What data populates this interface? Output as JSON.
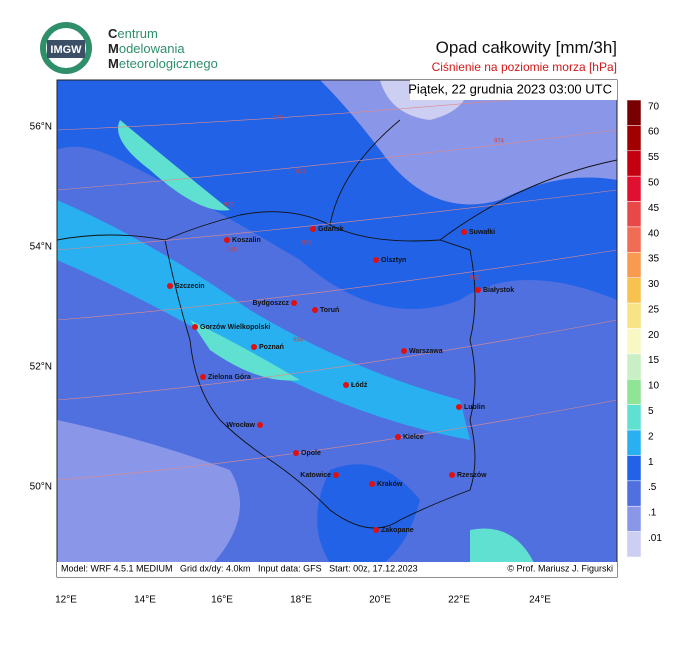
{
  "header": {
    "logo": "IMGW",
    "org_lines": [
      "Centrum",
      "Modelowania",
      "Meteorologicznego"
    ],
    "title": "Opad całkowity [mm/3h]",
    "subtitle": "Ciśnienie na poziomie morza [hPa]"
  },
  "map": {
    "date": "Piątek, 22 grudnia 2023 03:00 UTC",
    "lat_labels": [
      "56°N",
      "54°N",
      "52°N",
      "50°N"
    ],
    "lon_labels": [
      "12°E",
      "14°E",
      "16°E",
      "18°E",
      "20°E",
      "22°E",
      "24°E"
    ],
    "cities": [
      "Gdańsk",
      "Suwałki",
      "Koszalin",
      "Olsztyn",
      "Szczecin",
      "Białystok",
      "Bydgoszcz",
      "Toruń",
      "Gorzów Wielkopolski",
      "Poznań",
      "Warszawa",
      "Zielona Góra",
      "Łódź",
      "Lublin",
      "Wrocław",
      "Kielce",
      "Opole",
      "Katowice",
      "Rzeszów",
      "Kraków",
      "Zakopane"
    ],
    "isobar_labels": [
      "972",
      "974",
      "974",
      "976",
      "978",
      "980",
      "982",
      "984"
    ],
    "footer_left": "Model: WRF 4.5.1 MEDIUM   Grid dx/dy: 4.0km   Input data: GFS   Start: 00z, 17.12.2023",
    "footer_right": "© Prof. Mariusz J. Figurski"
  },
  "legend": [
    {
      "label": "70",
      "color": "#780000"
    },
    {
      "label": "60",
      "color": "#a00000"
    },
    {
      "label": "55",
      "color": "#c40010"
    },
    {
      "label": "50",
      "color": "#e01030"
    },
    {
      "label": "45",
      "color": "#e84848"
    },
    {
      "label": "40",
      "color": "#f06c54"
    },
    {
      "label": "35",
      "color": "#f89a50"
    },
    {
      "label": "30",
      "color": "#f8c24e"
    },
    {
      "label": "25",
      "color": "#f6e486"
    },
    {
      "label": "20",
      "color": "#f8f8c4"
    },
    {
      "label": "15",
      "color": "#c8f0c4"
    },
    {
      "label": "10",
      "color": "#90e496"
    },
    {
      "label": "5",
      "color": "#60e0d0"
    },
    {
      "label": "2",
      "color": "#28b0f0"
    },
    {
      "label": "1",
      "color": "#2262e6"
    },
    {
      "label": ".5",
      "color": "#5070e0"
    },
    {
      "label": ".1",
      "color": "#8a96e8"
    },
    {
      "label": ".01",
      "color": "#cccef2"
    }
  ]
}
